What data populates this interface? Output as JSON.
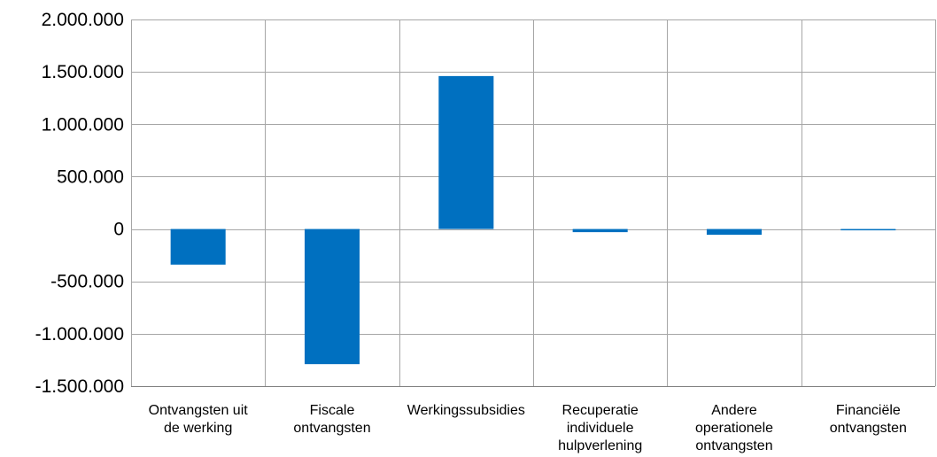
{
  "chart_data": {
    "type": "bar",
    "title": "",
    "xlabel": "",
    "ylabel": "",
    "categories": [
      [
        "Ontvangsten uit",
        "de werking"
      ],
      [
        "Fiscale",
        "ontvangsten"
      ],
      [
        "Werkingssubsidies"
      ],
      [
        "Recuperatie",
        "individuele",
        "hulpverlening"
      ],
      [
        "Andere",
        "operationele",
        "ontvangsten"
      ],
      [
        "Financiële",
        "ontvangsten"
      ]
    ],
    "values": [
      -340000,
      -1290000,
      1460000,
      -30000,
      -55000,
      -8000
    ],
    "ylim": [
      -1500000,
      2000000
    ],
    "yticks": [
      2000000,
      1500000,
      1000000,
      500000,
      0,
      -500000,
      -1000000,
      -1500000
    ],
    "ytick_labels": [
      "2.000.000",
      "1.500.000",
      "1.000.000",
      "500.000",
      "0",
      "-500.000",
      "-1.000.000",
      "-1.500.000"
    ],
    "grid": true,
    "colors": {
      "bar": "#0070C0",
      "grid": "#A6A6A6",
      "axis": "#808080"
    }
  }
}
